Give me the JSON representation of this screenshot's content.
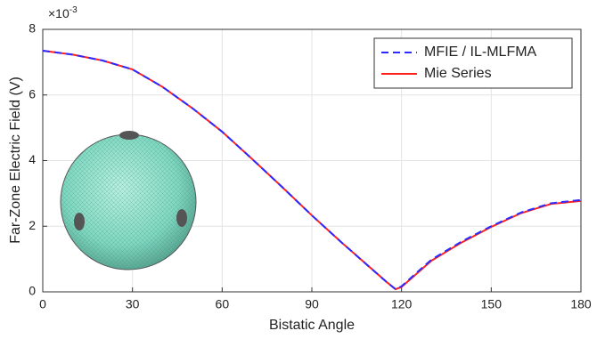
{
  "chart_data": {
    "type": "line",
    "xlabel": "Bistatic Angle",
    "ylabel": "Far-Zone Electric Field (V)",
    "y_multiplier": {
      "base": "×10",
      "power": "-3"
    },
    "x": [
      0,
      10,
      20,
      30,
      40,
      50,
      60,
      70,
      80,
      90,
      100,
      110,
      115,
      118,
      120,
      125,
      130,
      140,
      150,
      160,
      170,
      180
    ],
    "series": [
      {
        "name": "MFIE / IL-MLFMA",
        "color": "#2b2bff",
        "line_style": "dashed",
        "values": [
          7.35,
          7.23,
          7.05,
          6.78,
          6.25,
          5.6,
          4.88,
          4.05,
          3.2,
          2.33,
          1.5,
          0.7,
          0.3,
          0.08,
          0.17,
          0.58,
          0.98,
          1.53,
          2.0,
          2.42,
          2.7,
          2.8
        ]
      },
      {
        "name": "Mie Series",
        "color": "#ff2020",
        "line_style": "solid",
        "values": [
          7.35,
          7.23,
          7.05,
          6.78,
          6.25,
          5.6,
          4.88,
          4.05,
          3.2,
          2.33,
          1.5,
          0.7,
          0.3,
          0.08,
          0.15,
          0.55,
          0.95,
          1.5,
          1.98,
          2.4,
          2.68,
          2.77
        ]
      }
    ],
    "xlim": [
      0,
      180
    ],
    "xticks": [
      0,
      30,
      60,
      90,
      120,
      150,
      180
    ],
    "ylim": [
      0,
      8
    ],
    "yticks": [
      0,
      2,
      4,
      6,
      8
    ],
    "grid": true,
    "legend": "upper right"
  }
}
